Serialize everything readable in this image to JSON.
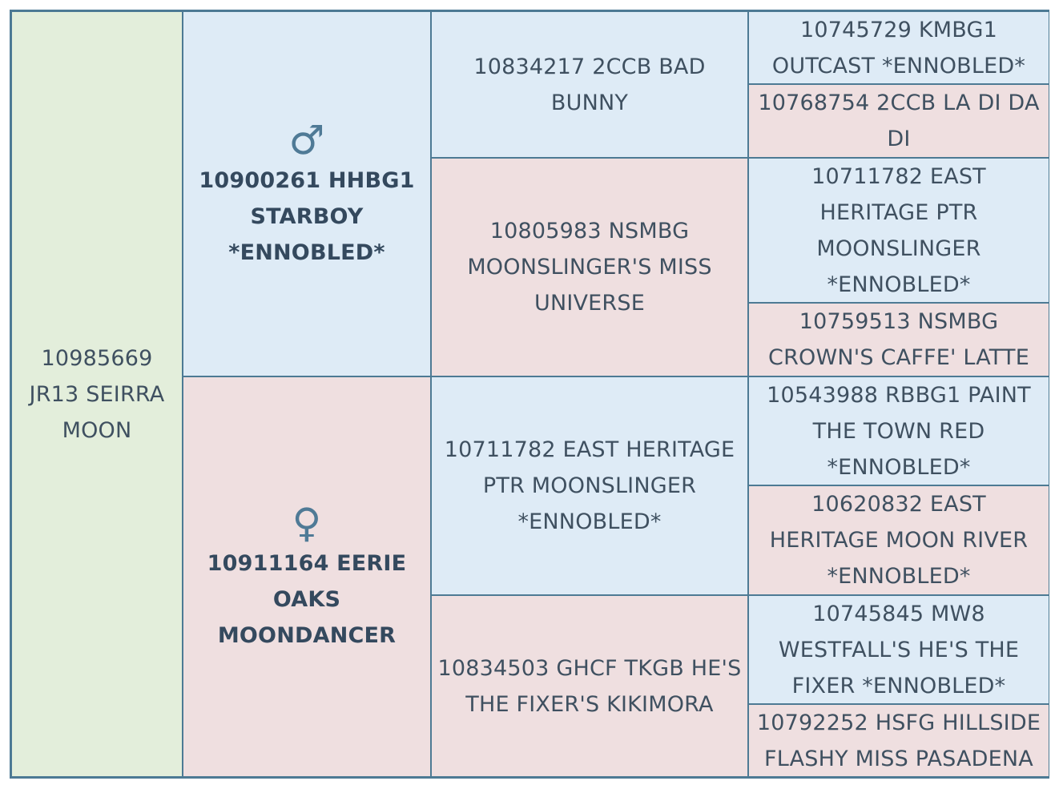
{
  "subject": {
    "name": "10985669 JR13 SEIRRA MOON"
  },
  "sire": {
    "symbol": "♂",
    "name": "10900261 HHBG1 STARBOY *ENNOBLED*"
  },
  "dam": {
    "symbol": "♀",
    "name": "10911164 EERIE OAKS MOONDANCER"
  },
  "grandparents": {
    "sire_sire": "10834217 2CCB BAD BUNNY",
    "sire_dam": "10805983 NSMBG MOONSLINGER'S MISS UNIVERSE",
    "dam_sire": "10711782 EAST HERITAGE PTR MOONSLINGER *ENNOBLED*",
    "dam_dam": "10834503 GHCF TKGB HE'S THE FIXER'S KIKIMORA"
  },
  "great_grandparents": [
    "10745729 KMBG1 OUTCAST *ENNOBLED*",
    "10768754 2CCB LA DI DA DI",
    "10711782 EAST HERITAGE PTR MOONSLINGER *ENNOBLED*",
    "10759513 NSMBG CROWN'S CAFFE' LATTE",
    "10543988 RBBG1 PAINT THE TOWN RED *ENNOBLED*",
    "10620832 EAST HERITAGE MOON RIVER *ENNOBLED*",
    "10745845 MW8 WESTFALL'S HE'S THE FIXER *ENNOBLED*",
    "10792252 HSFG HILLSIDE FLASHY MISS PASADENA"
  ]
}
